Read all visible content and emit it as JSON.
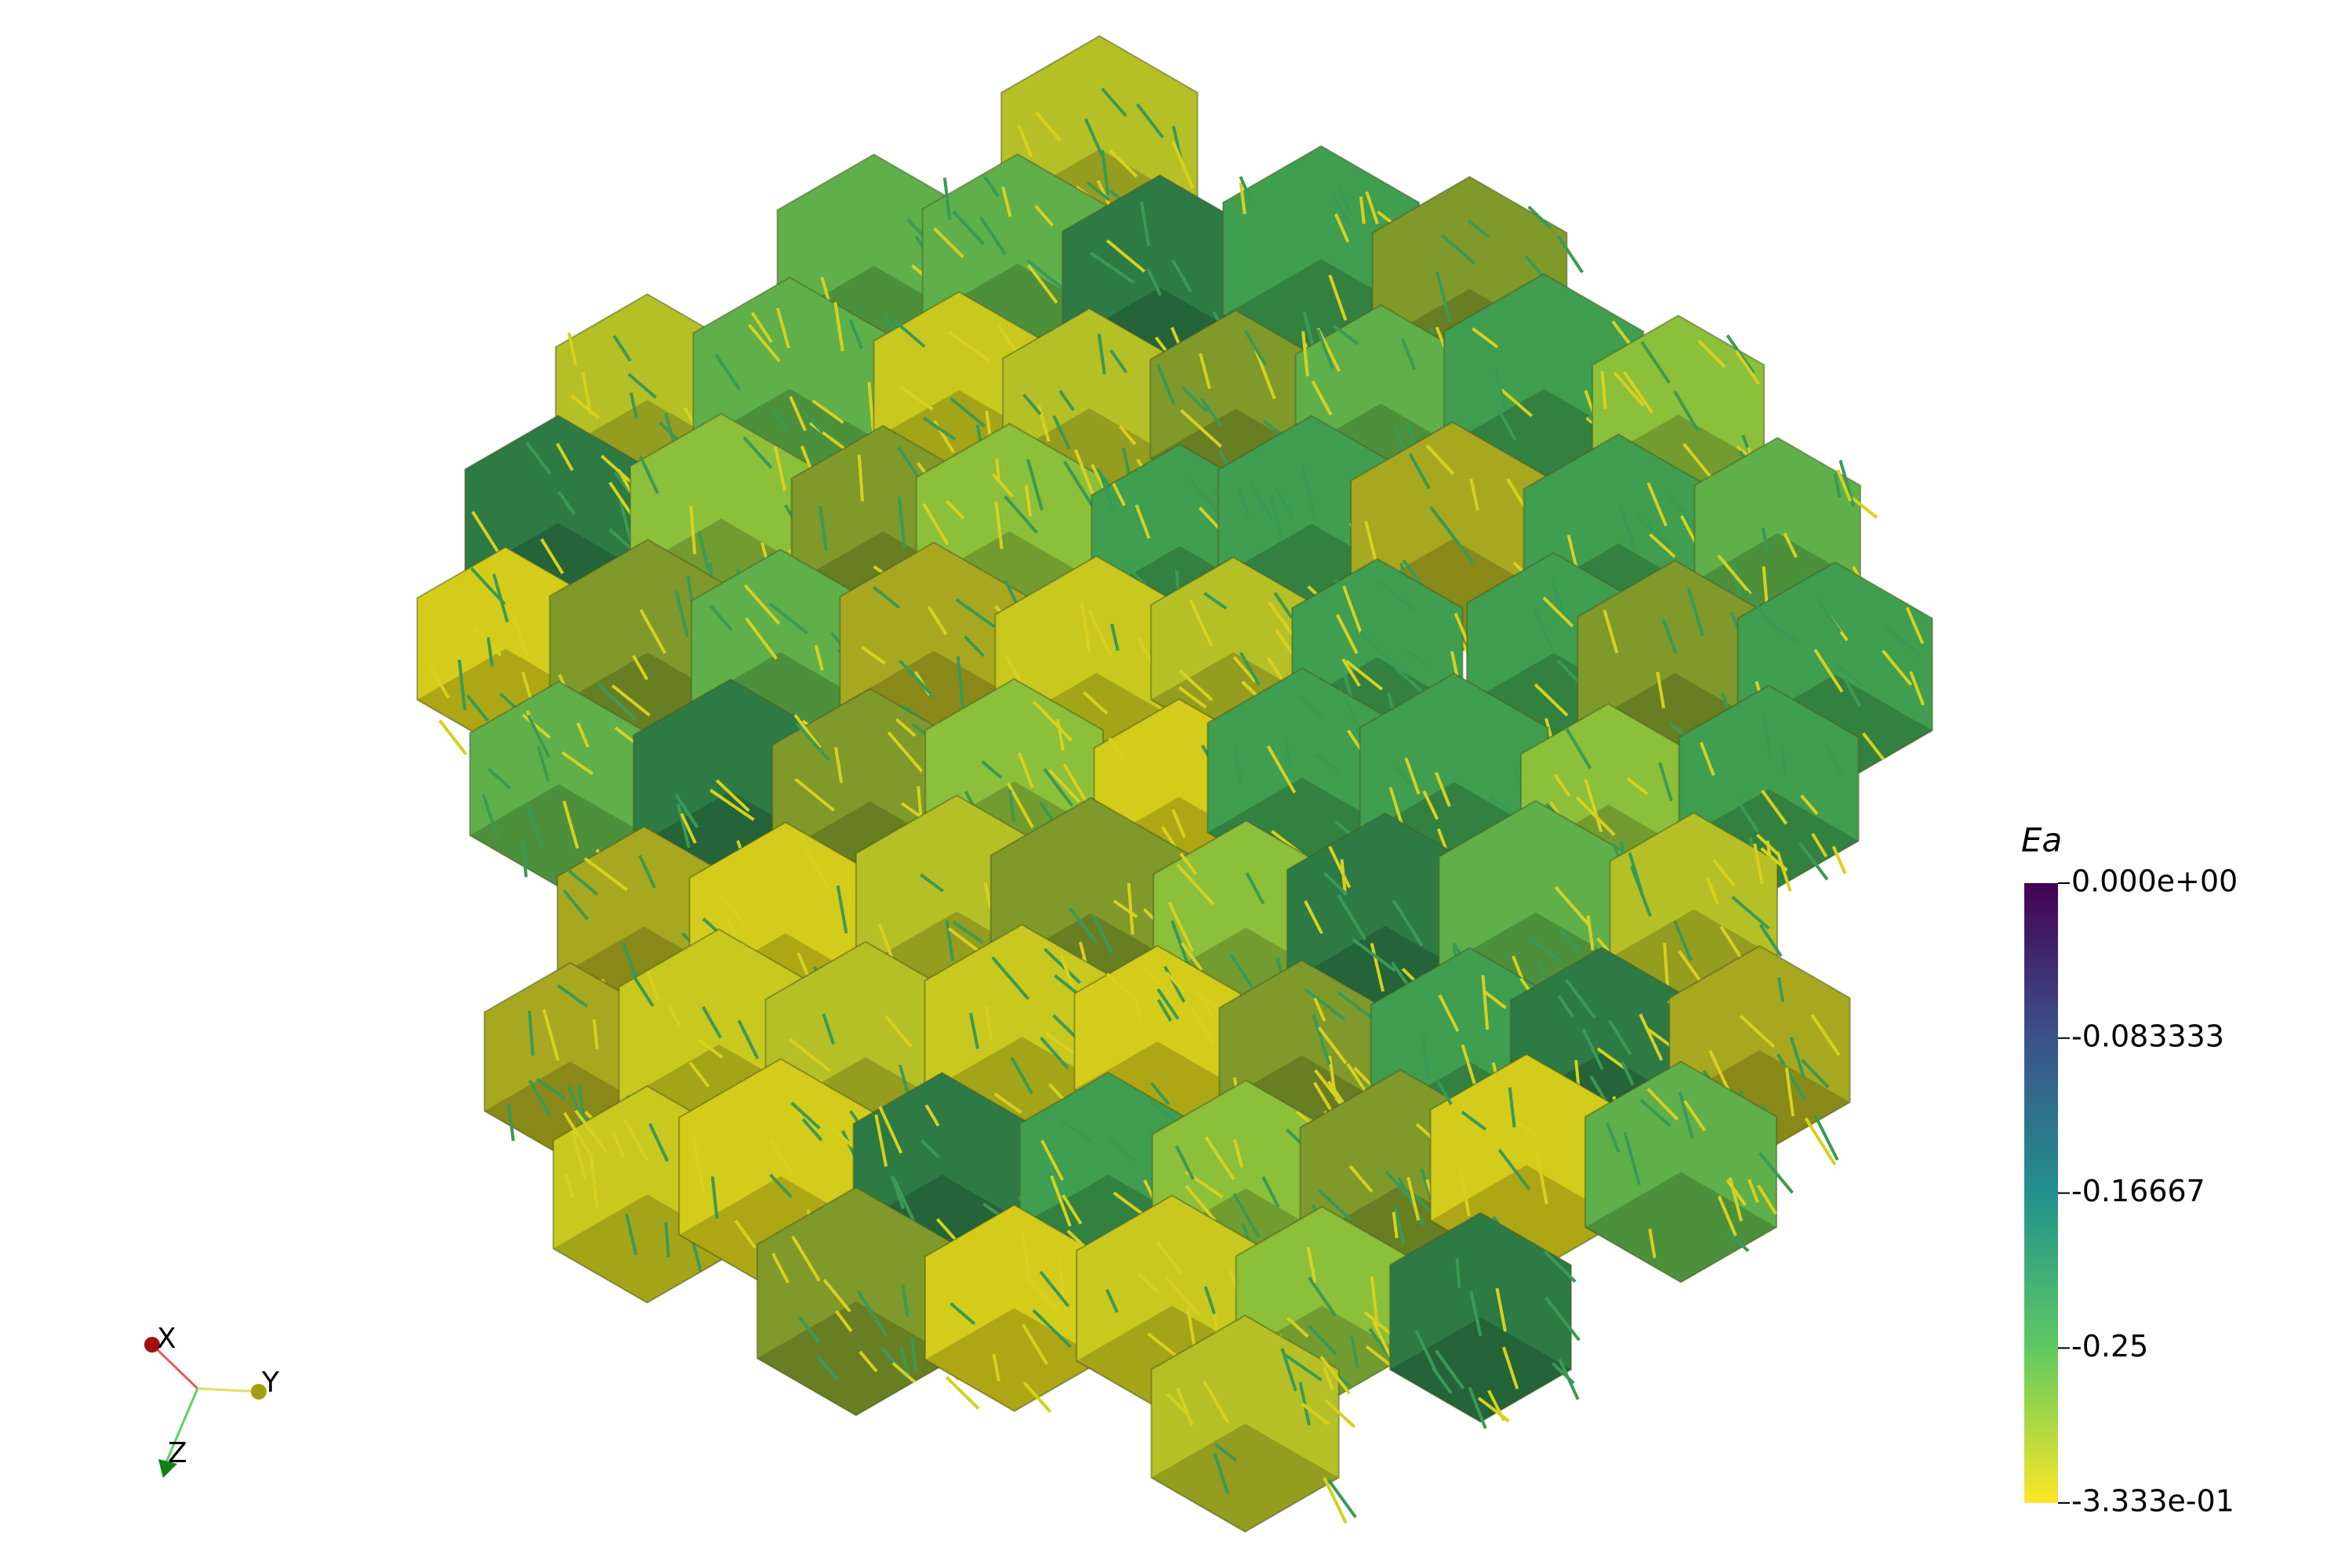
{
  "colorbar": {
    "title": "Ea",
    "ticks": [
      {
        "value": 0,
        "label": "0.000e+00"
      },
      -0.083333,
      -0.16667,
      -0.25,
      {
        "value": -0.3333,
        "label": "-3.333e-01"
      }
    ]
  },
  "axes": {
    "x": "X",
    "y": "Y",
    "z": "Z"
  }
}
